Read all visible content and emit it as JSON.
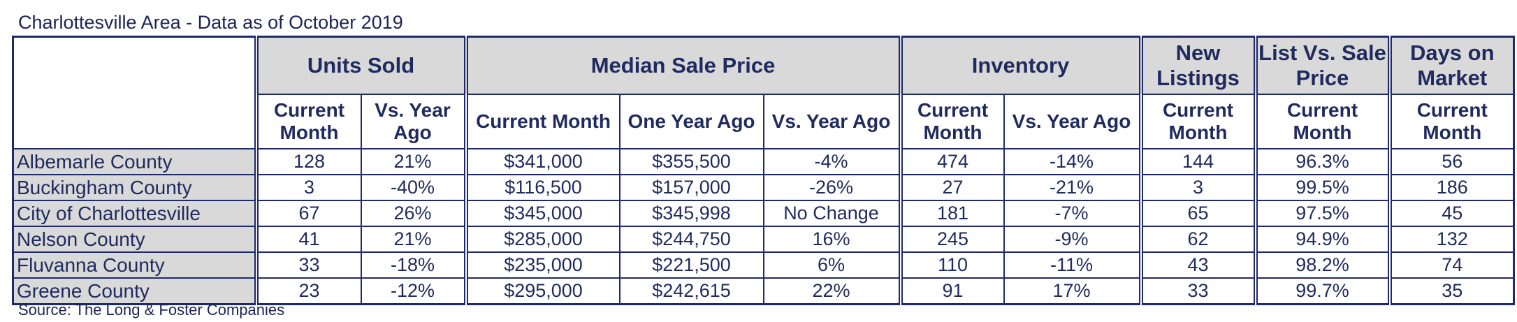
{
  "title": "Charlottesville Area - Data as of October 2019",
  "source": "Source: The Long & Foster Companies",
  "groups": {
    "units_sold": "Units Sold",
    "median_sale_price": "Median Sale Price",
    "inventory": "Inventory",
    "new_listings": "New Listings",
    "list_vs_sale": "List Vs. Sale Price",
    "days_on_market": "Days on Market"
  },
  "subheaders": {
    "units_current": "Current Month",
    "units_vs": "Vs. Year Ago",
    "price_current": "Current Month",
    "price_year_ago": "One Year Ago",
    "price_vs": "Vs. Year Ago",
    "inv_current": "Current Month",
    "inv_vs": "Vs. Year Ago",
    "new_current": "Current Month",
    "list_current": "Current Month",
    "dom_current": "Current Month"
  },
  "rows": [
    {
      "county": "Albemarle County",
      "units": "128",
      "units_vs": "21%",
      "price": "$341,000",
      "price_ya": "$355,500",
      "price_vs": "-4%",
      "inv": "474",
      "inv_vs": "-14%",
      "new": "144",
      "list": "96.3%",
      "dom": "56"
    },
    {
      "county": "Buckingham County",
      "units": "3",
      "units_vs": "-40%",
      "price": "$116,500",
      "price_ya": "$157,000",
      "price_vs": "-26%",
      "inv": "27",
      "inv_vs": "-21%",
      "new": "3",
      "list": "99.5%",
      "dom": "186"
    },
    {
      "county": "City of Charlottesville",
      "units": "67",
      "units_vs": "26%",
      "price": "$345,000",
      "price_ya": "$345,998",
      "price_vs": "No Change",
      "inv": "181",
      "inv_vs": "-7%",
      "new": "65",
      "list": "97.5%",
      "dom": "45"
    },
    {
      "county": "Nelson County",
      "units": "41",
      "units_vs": "21%",
      "price": "$285,000",
      "price_ya": "$244,750",
      "price_vs": "16%",
      "inv": "245",
      "inv_vs": "-9%",
      "new": "62",
      "list": "94.9%",
      "dom": "132"
    },
    {
      "county": "Fluvanna County",
      "units": "33",
      "units_vs": "-18%",
      "price": "$235,000",
      "price_ya": "$221,500",
      "price_vs": "6%",
      "inv": "110",
      "inv_vs": "-11%",
      "new": "43",
      "list": "98.2%",
      "dom": "74"
    },
    {
      "county": "Greene County",
      "units": "23",
      "units_vs": "-12%",
      "price": "$295,000",
      "price_ya": "$242,615",
      "price_vs": "22%",
      "inv": "91",
      "inv_vs": "17%",
      "new": "33",
      "list": "99.7%",
      "dom": "35"
    }
  ]
}
